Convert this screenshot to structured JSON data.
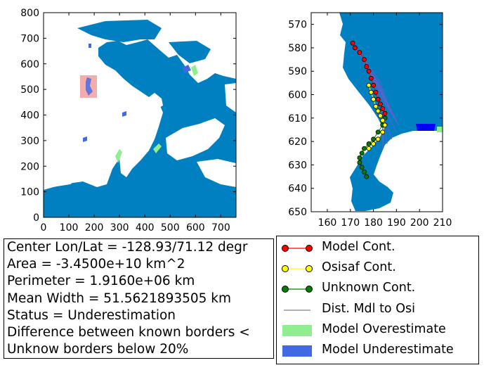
{
  "chart_data": [
    {
      "type": "map",
      "panel": "overview",
      "xlim": [
        0,
        760
      ],
      "ylim": [
        0,
        800
      ],
      "xticks": [
        "0",
        "100",
        "200",
        "300",
        "400",
        "500",
        "600",
        "700"
      ],
      "yticks": [
        "0",
        "100",
        "200",
        "300",
        "400",
        "500",
        "600",
        "700",
        "800"
      ],
      "ocean_color": "#0080c0",
      "land_color": "#ffffff",
      "highlight_box": {
        "x": [
          150,
          210
        ],
        "y": [
          475,
          565
        ],
        "color": "#f08080"
      }
    },
    {
      "type": "map",
      "panel": "zoom",
      "xlim": [
        153,
        210
      ],
      "ylim": [
        650,
        565
      ],
      "xticks": [
        "160",
        "170",
        "180",
        "190",
        "200",
        "210"
      ],
      "yticks": [
        "570",
        "580",
        "590",
        "600",
        "610",
        "620",
        "630",
        "640",
        "650"
      ],
      "model_contour": {
        "x": [
          171,
          172,
          174,
          176,
          177,
          178,
          179,
          180,
          181,
          182,
          183,
          184,
          185
        ],
        "y": [
          578,
          580,
          582,
          585,
          588,
          590,
          593,
          596,
          599,
          602,
          604,
          606,
          608
        ]
      },
      "osisaf_contour": {
        "x": [
          178,
          179,
          180,
          181,
          182,
          183,
          184,
          185,
          184,
          182,
          180,
          178
        ],
        "y": [
          596,
          599,
          602,
          605,
          607,
          609,
          611,
          613,
          616,
          619,
          621,
          623
        ]
      },
      "unknown_contour": {
        "x": [
          185,
          184,
          182,
          180,
          178,
          176,
          175,
          174,
          174,
          175,
          176,
          177
        ],
        "y": [
          610,
          613,
          616,
          619,
          621,
          623,
          625,
          627,
          629,
          631,
          633,
          635
        ]
      }
    }
  ],
  "info": {
    "lines": [
      "Center Lon/Lat = -128.93/71.12 degr",
      "Area = -3.4500e+10 km^2",
      "Perimeter = 1.9160e+06 km",
      "Mean Width = 51.5621893505 km",
      "Status = Underestimation",
      "Difference between known borders <",
      "Unknow borders below 20%"
    ]
  },
  "legend": {
    "items": [
      {
        "label": "Model Cont.",
        "color": "#ff0000",
        "kind": "line-marker"
      },
      {
        "label": "Osisaf Cont.",
        "color": "#ffff00",
        "kind": "line-marker"
      },
      {
        "label": "Unknown Cont.",
        "color": "#008000",
        "kind": "line-marker"
      },
      {
        "label": "Dist. Mdl to Osi",
        "color": "#808080",
        "kind": "line"
      },
      {
        "label": "Model Overestimate",
        "color": "#90ee90",
        "kind": "patch"
      },
      {
        "label": "Model Underestimate",
        "color": "#4169e1",
        "kind": "patch"
      }
    ]
  }
}
